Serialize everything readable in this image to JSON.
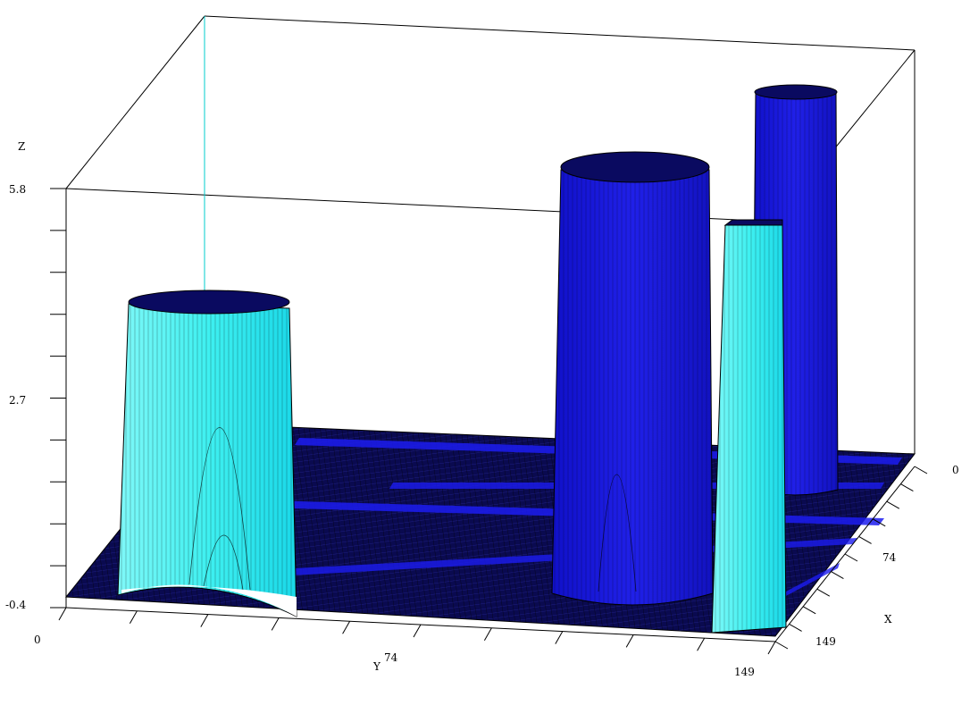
{
  "chart_data": {
    "type": "surface",
    "zlabel": "Z",
    "ylabel": "Y",
    "xlabel": "X",
    "z_ticks": [
      "5.8",
      "2.7",
      "-0.4"
    ],
    "zlim": [
      -0.4,
      5.8
    ],
    "y_ticks": [
      "0",
      "74",
      "149"
    ],
    "x_ticks": [
      "0",
      "74",
      "149"
    ],
    "grid_range": [
      0,
      149
    ],
    "floor_level": -0.4,
    "cylinders": [
      {
        "name": "cyan-cylinder-left",
        "color": "#3ff0f0",
        "height": 4.5
      },
      {
        "name": "blue-cylinder-front",
        "color": "#1a1ae0",
        "height": 5.6
      },
      {
        "name": "cyan-wall-front",
        "color": "#3ff0f0",
        "height": 5.2
      },
      {
        "name": "blue-cylinder-back",
        "color": "#1a1ae0",
        "height": 5.8
      }
    ],
    "colors": {
      "floor": "#0a0a50",
      "floor_stripe": "#1c1cf0",
      "cyan": "#3ff0f0",
      "blue": "#1a1ae0",
      "edge": "#000000",
      "vertical_ref": "#00cccc"
    }
  }
}
